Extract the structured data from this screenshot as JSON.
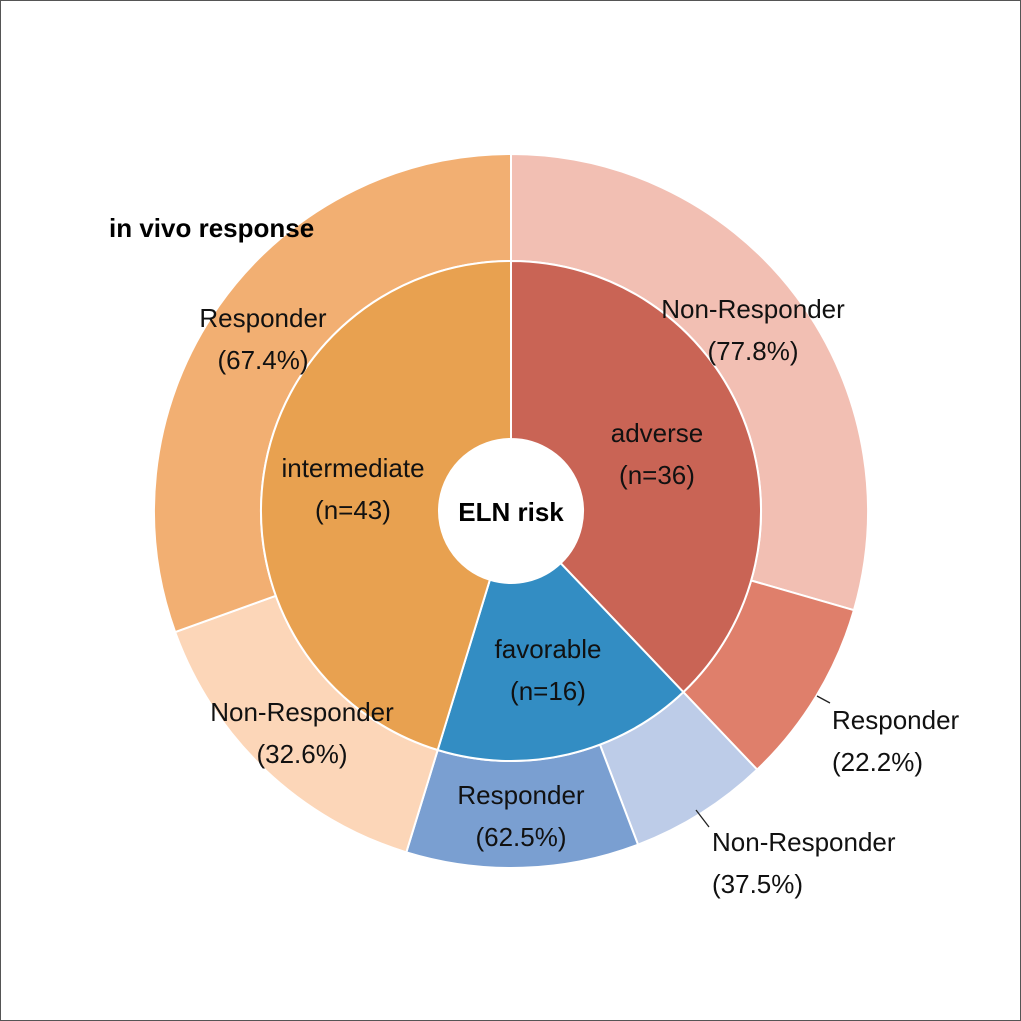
{
  "chart_data": {
    "type": "pie",
    "center_label": "ELN risk",
    "outer_title": "in vivo response",
    "inner_ring": [
      {
        "name": "adverse",
        "n": 36,
        "label": "adverse",
        "count_label": "(n=36)",
        "color": "#C96455"
      },
      {
        "name": "favorable",
        "n": 16,
        "label": "favorable",
        "count_label": "(n=16)",
        "color": "#338DC3"
      },
      {
        "name": "intermediate",
        "n": 43,
        "label": "intermediate",
        "count_label": "(n=43)",
        "color": "#E8A150"
      }
    ],
    "outer_ring": [
      {
        "group": "adverse",
        "name": "Non-Responder",
        "percent": 77.8,
        "pct_label": "(77.8%)",
        "color": "#F2BFB3"
      },
      {
        "group": "adverse",
        "name": "Responder",
        "percent": 22.2,
        "pct_label": "(22.2%)",
        "color": "#DF7F6B"
      },
      {
        "group": "favorable",
        "name": "Non-Responder",
        "percent": 37.5,
        "pct_label": "(37.5%)",
        "color": "#BDCCE8"
      },
      {
        "group": "favorable",
        "name": "Responder",
        "percent": 62.5,
        "pct_label": "(62.5%)",
        "color": "#7A9FD1"
      },
      {
        "group": "intermediate",
        "name": "Non-Responder",
        "percent": 32.6,
        "pct_label": "(32.6%)",
        "color": "#FCD6B8"
      },
      {
        "group": "intermediate",
        "name": "Responder",
        "percent": 67.4,
        "pct_label": "(67.4%)",
        "color": "#F2AF72"
      }
    ]
  }
}
